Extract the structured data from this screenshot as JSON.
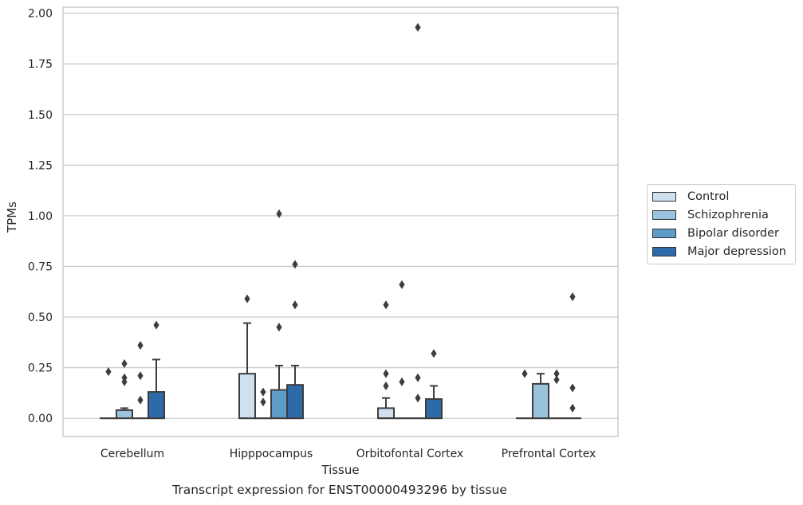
{
  "chart_data": {
    "type": "box",
    "title": "",
    "caption": "Transcript expression for ENST00000493296 by tissue",
    "xlabel": "Tissue",
    "ylabel": "TPMs",
    "ylim": [
      -0.09,
      2.03
    ],
    "yticks": [
      0.0,
      0.25,
      0.5,
      0.75,
      1.0,
      1.25,
      1.5,
      1.75,
      2.0
    ],
    "ytick_labels": [
      "0.00",
      "0.25",
      "0.50",
      "0.75",
      "1.00",
      "1.25",
      "1.50",
      "1.75",
      "2.00"
    ],
    "categories": [
      "Cerebellum",
      "Hipppocampus",
      "Orbitofontal Cortex",
      "Prefrontal Cortex"
    ],
    "grid": "horizontal",
    "legend_position": "right",
    "series": [
      {
        "name": "Control",
        "color": "#d0e0f0",
        "boxes": [
          {
            "q1": 0,
            "median": 0,
            "q3": 0,
            "whisker_low": 0,
            "whisker_high": 0,
            "outliers": [
              0.23
            ]
          },
          {
            "q1": 0,
            "median": 0,
            "q3": 0.22,
            "whisker_low": 0,
            "whisker_high": 0.47,
            "outliers": [
              0.59
            ]
          },
          {
            "q1": 0,
            "median": 0,
            "q3": 0.05,
            "whisker_low": 0,
            "whisker_high": 0.1,
            "outliers": [
              0.56,
              0.22,
              0.16
            ]
          },
          {
            "q1": 0,
            "median": 0,
            "q3": 0,
            "whisker_low": 0,
            "whisker_high": 0,
            "outliers": [
              0.22
            ]
          }
        ]
      },
      {
        "name": "Schizophrenia",
        "color": "#9ac3dd",
        "boxes": [
          {
            "q1": 0,
            "median": 0,
            "q3": 0.04,
            "whisker_low": 0,
            "whisker_high": 0.05,
            "outliers": [
              0.27,
              0.2,
              0.18
            ]
          },
          {
            "q1": 0,
            "median": 0,
            "q3": 0,
            "whisker_low": 0,
            "whisker_high": 0,
            "outliers": [
              0.13,
              0.08
            ]
          },
          {
            "q1": 0,
            "median": 0,
            "q3": 0,
            "whisker_low": 0,
            "whisker_high": 0,
            "outliers": [
              0.66,
              0.18
            ]
          },
          {
            "q1": 0,
            "median": 0,
            "q3": 0.17,
            "whisker_low": 0,
            "whisker_high": 0.22,
            "outliers": []
          }
        ]
      },
      {
        "name": "Bipolar disorder",
        "color": "#5d9cc7",
        "boxes": [
          {
            "q1": 0,
            "median": 0,
            "q3": 0,
            "whisker_low": 0,
            "whisker_high": 0,
            "outliers": [
              0.36,
              0.21,
              0.09
            ]
          },
          {
            "q1": 0,
            "median": 0,
            "q3": 0.14,
            "whisker_low": 0,
            "whisker_high": 0.26,
            "outliers": [
              1.01,
              0.45
            ]
          },
          {
            "q1": 0,
            "median": 0,
            "q3": 0,
            "whisker_low": 0,
            "whisker_high": 0,
            "outliers": [
              1.93,
              0.2,
              0.1
            ]
          },
          {
            "q1": 0,
            "median": 0,
            "q3": 0,
            "whisker_low": 0,
            "whisker_high": 0,
            "outliers": [
              0.22,
              0.19
            ]
          }
        ]
      },
      {
        "name": "Major depression",
        "color": "#2c6aa8",
        "boxes": [
          {
            "q1": 0,
            "median": 0,
            "q3": 0.13,
            "whisker_low": 0,
            "whisker_high": 0.29,
            "outliers": [
              0.46
            ]
          },
          {
            "q1": 0,
            "median": 0,
            "q3": 0.165,
            "whisker_low": 0,
            "whisker_high": 0.26,
            "outliers": [
              0.76,
              0.56
            ]
          },
          {
            "q1": 0,
            "median": 0,
            "q3": 0.095,
            "whisker_low": 0,
            "whisker_high": 0.16,
            "outliers": [
              0.32
            ]
          },
          {
            "q1": 0,
            "median": 0,
            "q3": 0,
            "whisker_low": 0,
            "whisker_high": 0,
            "outliers": [
              0.6,
              0.15,
              0.05
            ]
          }
        ]
      }
    ]
  }
}
